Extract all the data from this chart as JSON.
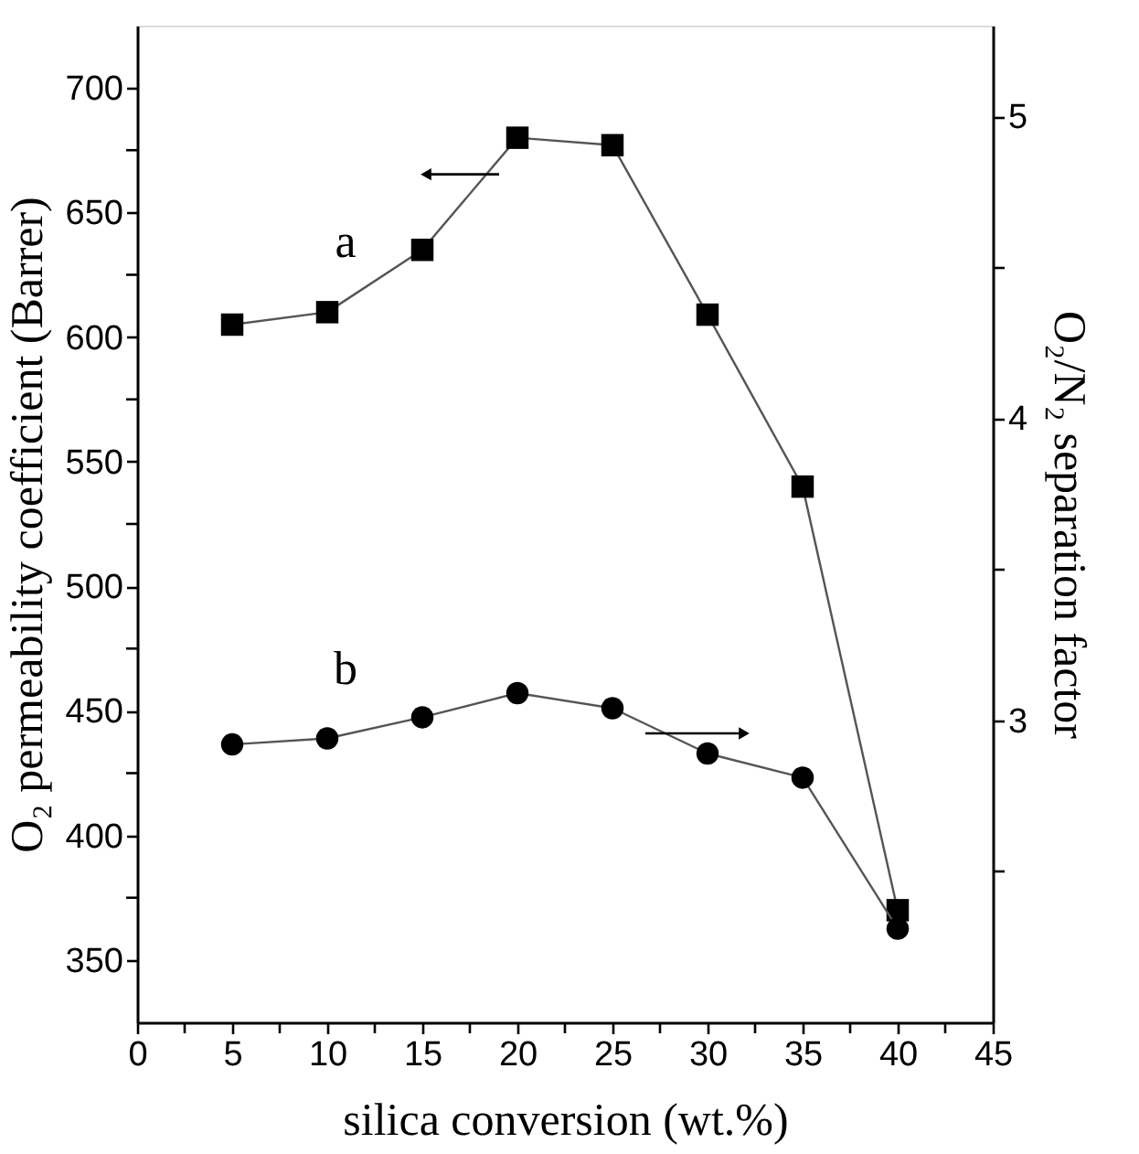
{
  "chart_data": {
    "type": "line",
    "xlabel": "silica conversion (wt.%)",
    "ylabel": "O₂ permeability coefficient (Barrer)",
    "y2label": "O₂/N₂ separation factor",
    "x": [
      5,
      10,
      15,
      20,
      25,
      30,
      35,
      40
    ],
    "series": [
      {
        "name": "a",
        "color": "#000000",
        "marker": "square",
        "values": [
          605,
          610,
          635,
          680,
          677,
          609,
          540,
          370
        ]
      },
      {
        "name": "b",
        "color": "#000000",
        "marker": "circle",
        "axis": "y2",
        "values": [
          2.92,
          2.94,
          3.01,
          3.09,
          3.04,
          2.89,
          2.81,
          2.31
        ]
      }
    ],
    "xlim": [
      0,
      45
    ],
    "xticks": [
      0,
      {
        "value": 2.5,
        "label": null
      },
      5,
      {
        "value": 7.5,
        "label": null
      },
      10,
      {
        "value": 12.5,
        "label": null
      },
      15,
      {
        "value": 17.5,
        "label": null
      },
      20,
      {
        "value": 22.5,
        "label": null
      },
      25,
      {
        "value": 27.5,
        "label": null
      },
      30,
      {
        "value": 32.5,
        "label": null
      },
      35,
      {
        "value": 37.5,
        "label": null
      },
      40,
      {
        "value": 42.5,
        "label": null
      },
      45
    ],
    "ylim": [
      325,
      725
    ],
    "yticks": [
      350,
      {
        "value": 375,
        "label": null
      },
      400,
      {
        "value": 425,
        "label": null
      },
      450,
      {
        "value": 475,
        "label": null
      },
      500,
      {
        "value": 525,
        "label": null
      },
      550,
      {
        "value": 575,
        "label": null
      },
      600,
      {
        "value": 625,
        "label": null
      },
      650,
      {
        "value": 675,
        "label": null
      },
      700
    ],
    "y2lim": [
      2.0,
      5.3
    ],
    "y2ticks": [
      {
        "value": 2.5,
        "label": null
      },
      3,
      {
        "value": 3.5,
        "label": null
      },
      4,
      {
        "value": 4.5,
        "label": null
      },
      5
    ],
    "grid": false,
    "line_style": "solid"
  }
}
